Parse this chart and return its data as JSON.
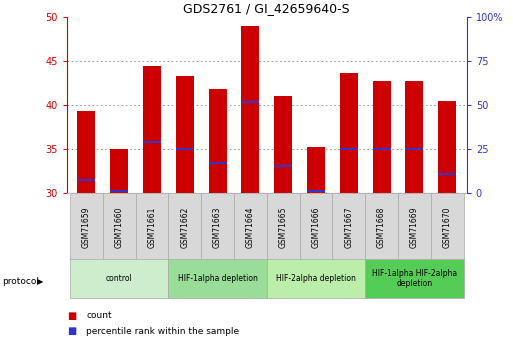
{
  "title": "GDS2761 / GI_42659640-S",
  "samples": [
    "GSM71659",
    "GSM71660",
    "GSM71661",
    "GSM71662",
    "GSM71663",
    "GSM71664",
    "GSM71665",
    "GSM71666",
    "GSM71667",
    "GSM71668",
    "GSM71669",
    "GSM71670"
  ],
  "bar_tops": [
    39.3,
    35.0,
    44.5,
    43.3,
    41.8,
    49.0,
    41.0,
    35.2,
    43.7,
    42.8,
    42.8,
    40.5
  ],
  "bar_bottom": 30.0,
  "blue_marks": [
    31.5,
    30.2,
    35.8,
    35.0,
    33.4,
    40.4,
    33.1,
    30.3,
    35.0,
    35.0,
    35.0,
    32.2
  ],
  "ylim": [
    30,
    50
  ],
  "y2lim": [
    0,
    100
  ],
  "yticks": [
    30,
    35,
    40,
    45,
    50
  ],
  "y2ticks": [
    0,
    25,
    50,
    75,
    100
  ],
  "bar_color": "#cc0000",
  "blue_color": "#3333cc",
  "grid_color": "#555555",
  "title_color": "#000000",
  "left_axis_color": "#cc0000",
  "right_axis_color": "#3333cc",
  "bg_color": "#ffffff",
  "protocols": [
    {
      "label": "control",
      "start": 0,
      "end": 2,
      "color": "#cceecc"
    },
    {
      "label": "HIF-1alpha depletion",
      "start": 3,
      "end": 5,
      "color": "#99dd99"
    },
    {
      "label": "HIF-2alpha depletion",
      "start": 6,
      "end": 8,
      "color": "#bbeeaa"
    },
    {
      "label": "HIF-1alpha HIF-2alpha\ndepletion",
      "start": 9,
      "end": 11,
      "color": "#55cc55"
    }
  ],
  "legend_items": [
    {
      "label": "count",
      "color": "#cc0000"
    },
    {
      "label": "percentile rank within the sample",
      "color": "#3333cc"
    }
  ],
  "figsize": [
    5.13,
    3.45
  ],
  "dpi": 100
}
